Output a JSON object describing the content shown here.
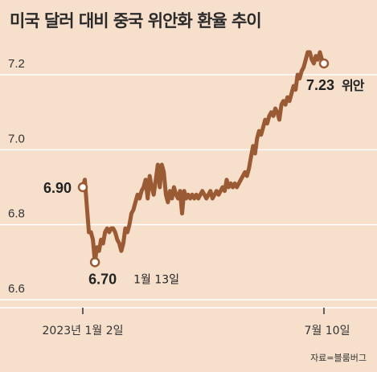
{
  "title": "미국 달러 대비 중국 위안화 환율 추이",
  "source": "자료=블룸버그",
  "colors": {
    "background": "#f6dfcb",
    "line": "#9a5a34",
    "grid": "#ffffff",
    "marker_fill": "#ffffff"
  },
  "chart_data": {
    "type": "line",
    "title": "미국 달러 대비 중국 위안화 환율 추이",
    "xlabel": "",
    "ylabel": "",
    "x_tick_labels": [
      "2023년 1월 2일",
      "7월 10일"
    ],
    "y_ticks": [
      "7.2",
      "7.0",
      "6.8",
      "6.6"
    ],
    "ylim": [
      6.6,
      7.27
    ],
    "grid": true,
    "annotations": [
      {
        "value_label": "6.90",
        "unit": "",
        "date": ""
      },
      {
        "value_label": "6.70",
        "unit": "",
        "date": "1월 13일"
      },
      {
        "value_label": "7.23",
        "unit": "위안",
        "date": ""
      }
    ],
    "series": [
      {
        "values": [
          6.9,
          6.92,
          6.85,
          6.78,
          6.78,
          6.76,
          6.7,
          6.74,
          6.73,
          6.76,
          6.75,
          6.78,
          6.79,
          6.78,
          6.79,
          6.79,
          6.78,
          6.76,
          6.75,
          6.73,
          6.75,
          6.79,
          6.78,
          6.8,
          6.83,
          6.84,
          6.86,
          6.88,
          6.87,
          6.89,
          6.9,
          6.92,
          6.87,
          6.93,
          6.9,
          6.88,
          6.92,
          6.96,
          6.9,
          6.96,
          6.94,
          6.88,
          6.86,
          6.89,
          6.87,
          6.9,
          6.88,
          6.87,
          6.89,
          6.83,
          6.89,
          6.87,
          6.88,
          6.87,
          6.88,
          6.87,
          6.88,
          6.87,
          6.88,
          6.89,
          6.88,
          6.87,
          6.88,
          6.89,
          6.87,
          6.88,
          6.89,
          6.88,
          6.89,
          6.9,
          6.89,
          6.92,
          6.9,
          6.91,
          6.9,
          6.91,
          6.9,
          6.91,
          6.92,
          6.93,
          6.94,
          6.93,
          6.95,
          6.98,
          7.01,
          6.99,
          7.03,
          7.05,
          7.04,
          7.06,
          7.08,
          7.07,
          7.09,
          7.1,
          7.09,
          7.11,
          7.1,
          7.08,
          7.12,
          7.13,
          7.12,
          7.14,
          7.13,
          7.15,
          7.17,
          7.16,
          7.2,
          7.19,
          7.21,
          7.22,
          7.24,
          7.26,
          7.26,
          7.24,
          7.23,
          7.25,
          7.24,
          7.26,
          7.24,
          7.23
        ]
      }
    ]
  }
}
